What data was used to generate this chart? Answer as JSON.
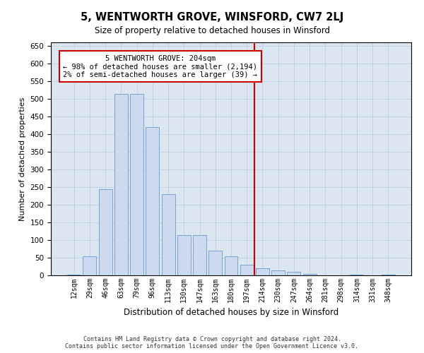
{
  "title": "5, WENTWORTH GROVE, WINSFORD, CW7 2LJ",
  "subtitle": "Size of property relative to detached houses in Winsford",
  "xlabel": "Distribution of detached houses by size in Winsford",
  "ylabel": "Number of detached properties",
  "footer_line1": "Contains HM Land Registry data © Crown copyright and database right 2024.",
  "footer_line2": "Contains public sector information licensed under the Open Government Licence v3.0.",
  "bar_labels": [
    "12sqm",
    "29sqm",
    "46sqm",
    "63sqm",
    "79sqm",
    "96sqm",
    "113sqm",
    "130sqm",
    "147sqm",
    "163sqm",
    "180sqm",
    "197sqm",
    "214sqm",
    "230sqm",
    "247sqm",
    "264sqm",
    "281sqm",
    "298sqm",
    "314sqm",
    "331sqm",
    "348sqm"
  ],
  "bar_values": [
    2,
    55,
    245,
    515,
    515,
    420,
    230,
    115,
    115,
    70,
    55,
    30,
    20,
    15,
    10,
    5,
    0,
    0,
    2,
    0,
    2
  ],
  "bar_color": "#ccd9ee",
  "bar_edge_color": "#6699cc",
  "grid_color": "#b8cce4",
  "background_color": "#dce6f1",
  "vline_x_index": 11.5,
  "annotation_text": "5 WENTWORTH GROVE: 204sqm\n← 98% of detached houses are smaller (2,194)\n2% of semi-detached houses are larger (39) →",
  "annotation_box_color": "#ffffff",
  "annotation_border_color": "#cc0000",
  "vline_color": "#cc0000",
  "ylim": [
    0,
    660
  ],
  "yticks": [
    0,
    50,
    100,
    150,
    200,
    250,
    300,
    350,
    400,
    450,
    500,
    550,
    600,
    650
  ]
}
